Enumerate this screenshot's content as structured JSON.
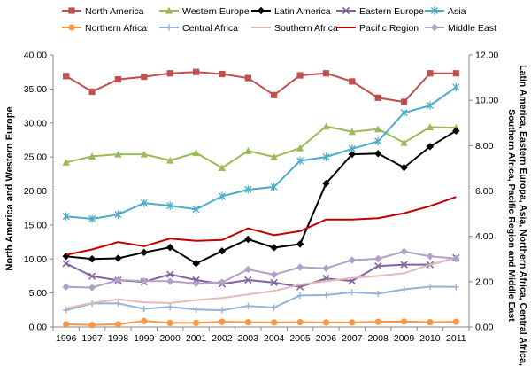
{
  "chart_data": {
    "type": "line",
    "x": [
      1996,
      1997,
      1998,
      1999,
      2000,
      2001,
      2002,
      2003,
      2004,
      2005,
      2006,
      2007,
      2008,
      2009,
      2010,
      2011
    ],
    "x_tick_labels": [
      "1996",
      "1997",
      "1998",
      "1999",
      "2000",
      "2001",
      "2002",
      "2003",
      "2004",
      "2005",
      "2006",
      "2007",
      "2008",
      "2009",
      "2010",
      "2011"
    ],
    "ylabel_left": "North America and Western Europe",
    "ylabel_right": "Latin America, Eastern Europa, Asia, Northern Africa, Central Africa, Southern Africa, Pacific Region and Middle East",
    "ylim_left": [
      0,
      40
    ],
    "ylim_right": [
      0,
      12
    ],
    "yticks_left": [
      "0.00",
      "5.00",
      "10.00",
      "15.00",
      "20.00",
      "25.00",
      "30.00",
      "35.00",
      "40.00"
    ],
    "yticks_right": [
      "0.00",
      "2.00",
      "4.00",
      "6.00",
      "8.00",
      "10.00",
      "12.00"
    ],
    "grid": "none",
    "legend_placement": "top",
    "series": [
      {
        "name": "North America",
        "axis": "left",
        "color": "#C0504D",
        "marker": "square",
        "values": [
          36.9,
          34.6,
          36.4,
          36.8,
          37.3,
          37.5,
          37.2,
          36.6,
          34.1,
          37.0,
          37.3,
          36.1,
          33.7,
          33.1,
          37.3,
          37.3
        ]
      },
      {
        "name": "Western Europe",
        "axis": "left",
        "color": "#9BBB59",
        "marker": "triangle",
        "values": [
          24.2,
          25.1,
          25.4,
          25.4,
          24.5,
          25.6,
          23.4,
          25.9,
          25.0,
          26.3,
          29.5,
          28.7,
          29.1,
          27.1,
          29.4,
          29.3
        ]
      },
      {
        "name": "Latin America",
        "axis": "right",
        "color": "#000000",
        "marker": "diamond",
        "values": [
          3.12,
          3.0,
          3.03,
          3.29,
          3.51,
          2.8,
          3.35,
          3.87,
          3.5,
          3.66,
          6.33,
          7.62,
          7.65,
          7.03,
          7.96,
          8.65
        ]
      },
      {
        "name": "Eastern Europe",
        "axis": "right",
        "color": "#8064A2",
        "marker": "x",
        "values": [
          2.8,
          2.24,
          2.06,
          1.99,
          2.32,
          2.07,
          1.9,
          2.07,
          1.96,
          1.77,
          2.14,
          2.03,
          2.69,
          2.75,
          2.75,
          3.05
        ]
      },
      {
        "name": "Asia",
        "axis": "right",
        "color": "#4BACC6",
        "marker": "star",
        "values": [
          4.88,
          4.77,
          4.96,
          5.47,
          5.35,
          5.19,
          5.77,
          6.06,
          6.18,
          7.33,
          7.5,
          7.86,
          8.19,
          9.45,
          9.77,
          10.58
        ]
      },
      {
        "name": "Northern Africa",
        "axis": "right",
        "color": "#F79646",
        "marker": "circle",
        "values": [
          0.12,
          0.09,
          0.12,
          0.26,
          0.18,
          0.18,
          0.23,
          0.21,
          0.2,
          0.21,
          0.2,
          0.2,
          0.23,
          0.24,
          0.21,
          0.23
        ]
      },
      {
        "name": "Central Africa",
        "axis": "right",
        "color": "#95B3D7",
        "marker": "plus",
        "values": [
          0.74,
          1.04,
          1.04,
          0.8,
          0.89,
          0.77,
          0.74,
          0.93,
          0.86,
          1.39,
          1.41,
          1.53,
          1.47,
          1.66,
          1.78,
          1.77
        ]
      },
      {
        "name": "Southern Africa",
        "axis": "right",
        "color": "#E6B9B8",
        "marker": "none",
        "values": [
          0.83,
          1.06,
          1.22,
          1.09,
          1.06,
          1.19,
          1.28,
          1.44,
          1.59,
          1.87,
          2.02,
          2.16,
          2.25,
          2.37,
          2.75,
          3.06
        ]
      },
      {
        "name": "Pacific Region",
        "axis": "right",
        "color": "#C00000",
        "marker": "none",
        "values": [
          3.18,
          3.42,
          3.75,
          3.56,
          3.9,
          3.8,
          3.84,
          4.35,
          4.05,
          4.23,
          4.74,
          4.74,
          4.8,
          5.02,
          5.33,
          5.74
        ]
      },
      {
        "name": "Middle East",
        "axis": "right",
        "color": "#B2A1C7",
        "marker": "diamond",
        "values": [
          1.77,
          1.74,
          2.07,
          2.03,
          2.02,
          1.92,
          1.97,
          2.54,
          2.31,
          2.64,
          2.59,
          2.95,
          3.01,
          3.33,
          3.12,
          3.02
        ]
      }
    ]
  }
}
